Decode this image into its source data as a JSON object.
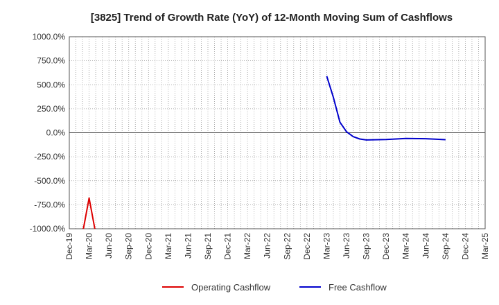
{
  "chart_data": {
    "type": "line",
    "title": "[3825]  Trend of Growth Rate (YoY) of 12-Month Moving Sum of Cashflows",
    "xlabel": "",
    "ylabel": "",
    "x_ticks": [
      "Dec-19",
      "Mar-20",
      "Jun-20",
      "Sep-20",
      "Dec-20",
      "Mar-21",
      "Jun-21",
      "Sep-21",
      "Dec-21",
      "Mar-22",
      "Jun-22",
      "Sep-22",
      "Dec-22",
      "Mar-23",
      "Jun-23",
      "Sep-23",
      "Dec-23",
      "Mar-24",
      "Jun-24",
      "Sep-24",
      "Dec-24",
      "Mar-25"
    ],
    "y_ticks": [
      "1000.0%",
      "750.0%",
      "500.0%",
      "250.0%",
      "0.0%",
      "-250.0%",
      "-500.0%",
      "-750.0%",
      "-1000.0%"
    ],
    "ylim": [
      -1000,
      1000
    ],
    "grid": true,
    "legend_position": "bottom",
    "series": [
      {
        "name": "Operating Cashflow",
        "color": "#dd0000",
        "points": [
          {
            "x": "Feb-20",
            "y": -1050
          },
          {
            "x": "Mar-20",
            "y": -680
          },
          {
            "x": "Apr-20",
            "y": -1050
          }
        ]
      },
      {
        "name": "Free Cashflow",
        "color": "#0000cc",
        "points": [
          {
            "x": "Mar-23",
            "y": 590
          },
          {
            "x": "Apr-23",
            "y": 370
          },
          {
            "x": "May-23",
            "y": 110
          },
          {
            "x": "Jun-23",
            "y": 10
          },
          {
            "x": "Jul-23",
            "y": -40
          },
          {
            "x": "Aug-23",
            "y": -65
          },
          {
            "x": "Sep-23",
            "y": -75
          },
          {
            "x": "Dec-23",
            "y": -70
          },
          {
            "x": "Mar-24",
            "y": -60
          },
          {
            "x": "Jun-24",
            "y": -62
          },
          {
            "x": "Sep-24",
            "y": -72
          }
        ]
      }
    ]
  }
}
